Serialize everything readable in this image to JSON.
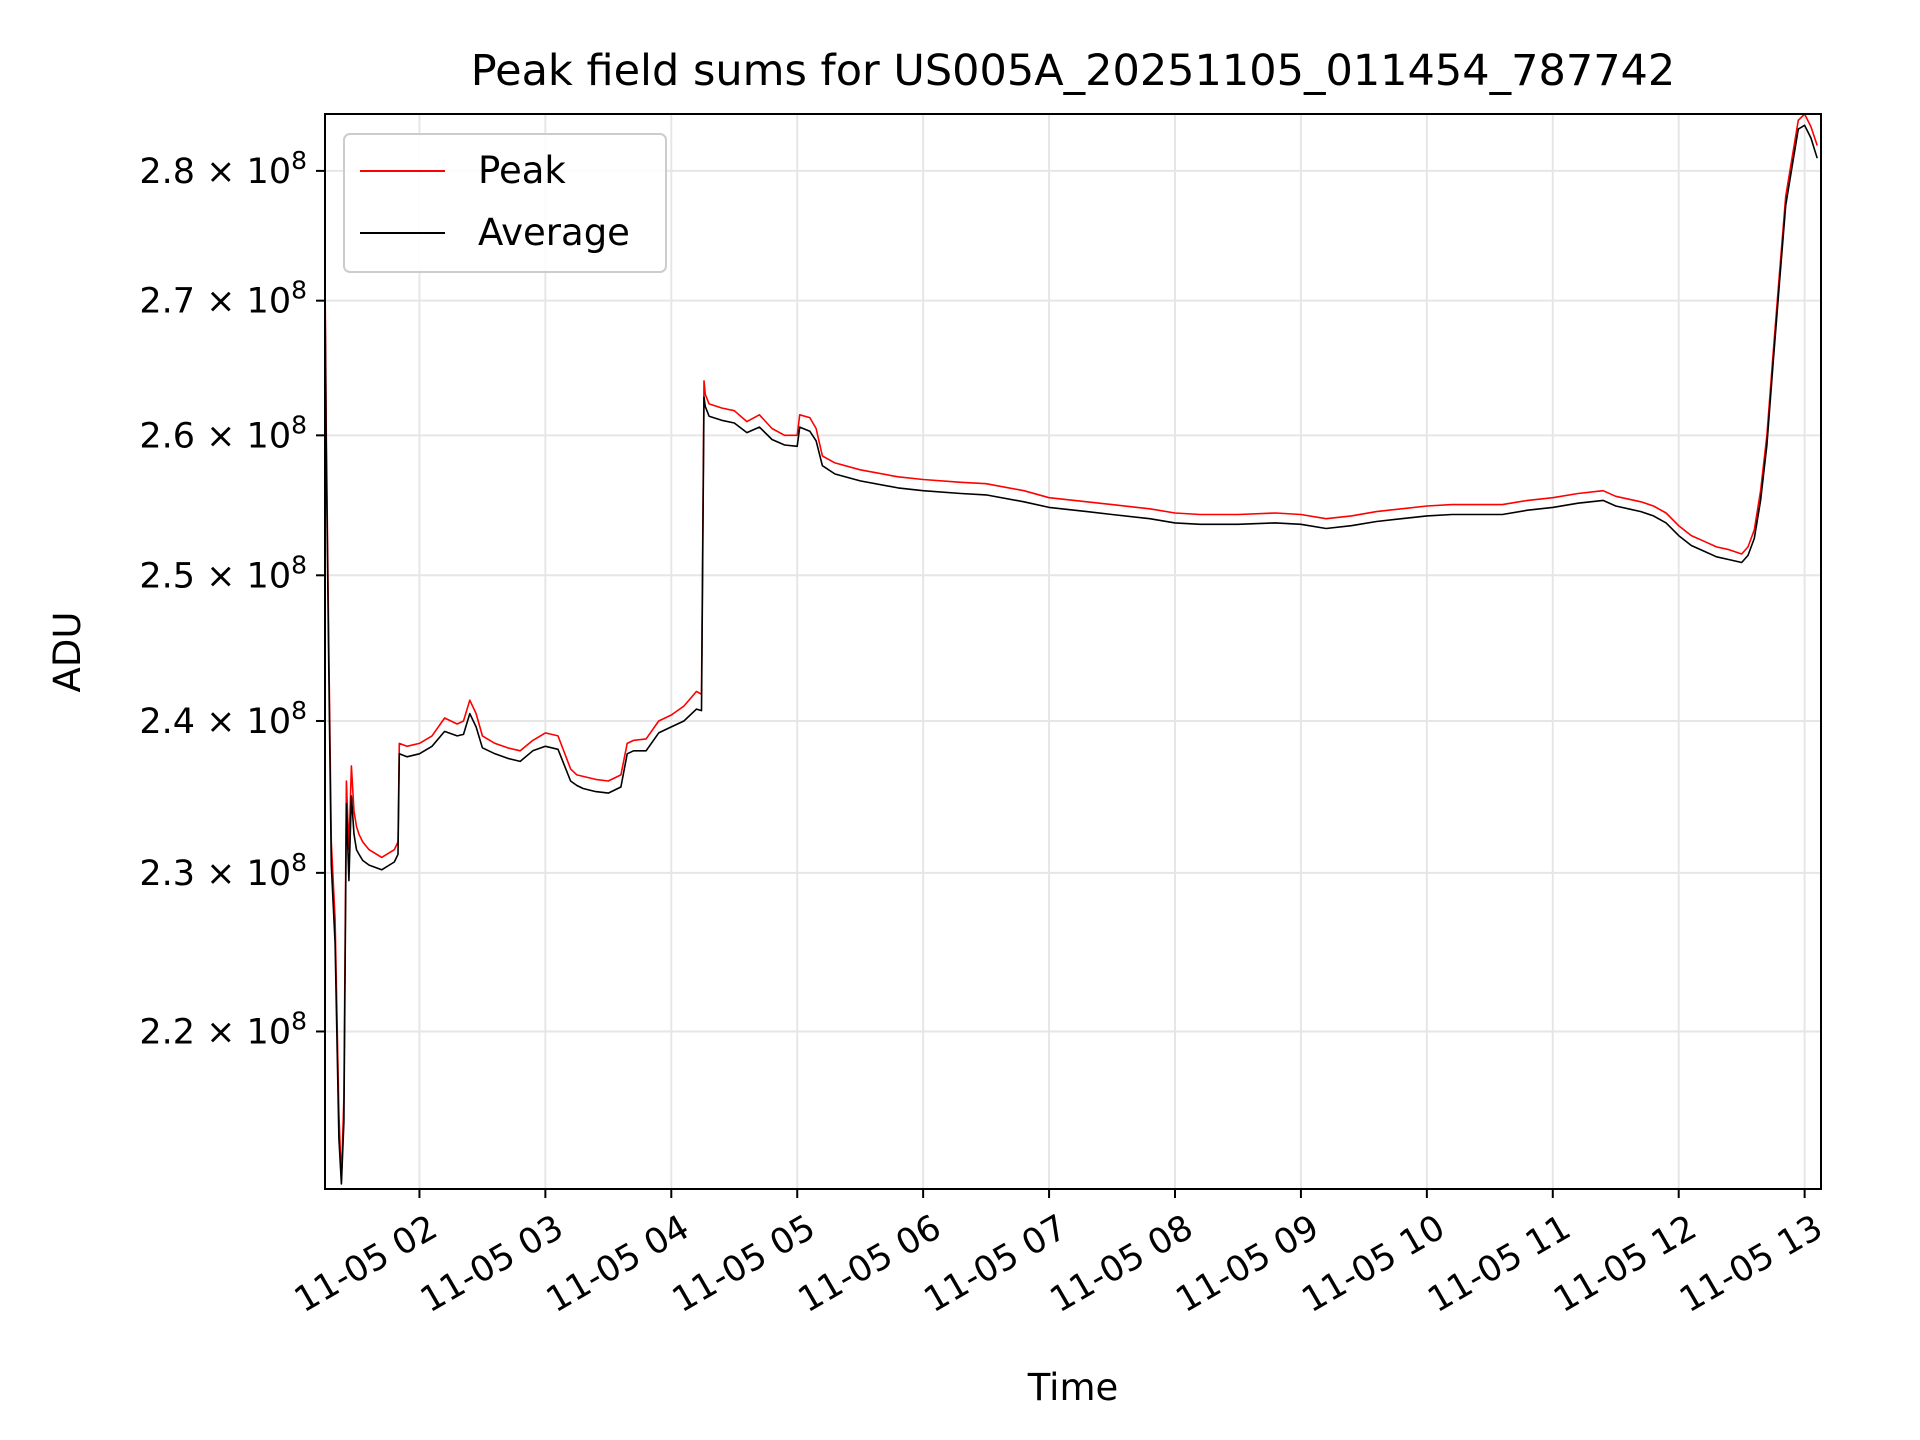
{
  "chart_data": {
    "type": "line",
    "title": "Peak field sums for US005A_20251105_011454_787742",
    "xlabel": "Time",
    "ylabel": "ADU",
    "yscale": "log",
    "grid": true,
    "legend_position": "top-left",
    "xlim": [
      1.25,
      13.13
    ],
    "ylim": [
      210500000,
      284500000
    ],
    "x_ticks": [
      {
        "value": 2,
        "label": "11-05 02"
      },
      {
        "value": 3,
        "label": "11-05 03"
      },
      {
        "value": 4,
        "label": "11-05 04"
      },
      {
        "value": 5,
        "label": "11-05 05"
      },
      {
        "value": 6,
        "label": "11-05 06"
      },
      {
        "value": 7,
        "label": "11-05 07"
      },
      {
        "value": 8,
        "label": "11-05 08"
      },
      {
        "value": 9,
        "label": "11-05 09"
      },
      {
        "value": 10,
        "label": "11-05 10"
      },
      {
        "value": 11,
        "label": "11-05 11"
      },
      {
        "value": 12,
        "label": "11-05 12"
      },
      {
        "value": 13,
        "label": "11-05 13"
      }
    ],
    "y_ticks": [
      {
        "value": 220000000,
        "mantissa": "2.2",
        "exp": "8"
      },
      {
        "value": 230000000,
        "mantissa": "2.3",
        "exp": "8"
      },
      {
        "value": 240000000,
        "mantissa": "2.4",
        "exp": "8"
      },
      {
        "value": 250000000,
        "mantissa": "2.5",
        "exp": "8"
      },
      {
        "value": 260000000,
        "mantissa": "2.6",
        "exp": "8"
      },
      {
        "value": 270000000,
        "mantissa": "2.7",
        "exp": "8"
      },
      {
        "value": 280000000,
        "mantissa": "2.8",
        "exp": "8"
      }
    ],
    "series": [
      {
        "name": "Peak",
        "color": "#ff0000",
        "x": [
          1.25,
          1.26,
          1.28,
          1.3,
          1.33,
          1.36,
          1.38,
          1.4,
          1.42,
          1.44,
          1.46,
          1.48,
          1.5,
          1.52,
          1.55,
          1.6,
          1.7,
          1.8,
          1.83,
          1.84,
          1.9,
          2.0,
          2.1,
          2.2,
          2.3,
          2.35,
          2.4,
          2.45,
          2.5,
          2.6,
          2.7,
          2.8,
          2.9,
          3.0,
          3.1,
          3.2,
          3.25,
          3.3,
          3.4,
          3.5,
          3.6,
          3.65,
          3.7,
          3.8,
          3.9,
          4.0,
          4.1,
          4.2,
          4.24,
          4.26,
          4.27,
          4.3,
          4.4,
          4.5,
          4.6,
          4.7,
          4.8,
          4.9,
          5.0,
          5.02,
          5.1,
          5.15,
          5.2,
          5.3,
          5.5,
          5.8,
          6.0,
          6.3,
          6.5,
          6.8,
          7.0,
          7.3,
          7.5,
          7.8,
          8.0,
          8.2,
          8.5,
          8.8,
          9.0,
          9.2,
          9.4,
          9.6,
          9.8,
          10.0,
          10.2,
          10.4,
          10.6,
          10.8,
          11.0,
          11.2,
          11.4,
          11.5,
          11.7,
          11.8,
          11.9,
          12.0,
          12.1,
          12.2,
          12.3,
          12.4,
          12.5,
          12.55,
          12.6,
          12.65,
          12.7,
          12.75,
          12.8,
          12.85,
          12.9,
          12.95,
          13.0,
          13.05,
          13.1
        ],
        "values": [
          272000000,
          260000000,
          245000000,
          232000000,
          227000000,
          215000000,
          211000000,
          216000000,
          236000000,
          231500000,
          237000000,
          234000000,
          233000000,
          232500000,
          232000000,
          231500000,
          231000000,
          231500000,
          232000000,
          238500000,
          238300000,
          238500000,
          239000000,
          240200000,
          239800000,
          240000000,
          241400000,
          240500000,
          239000000,
          238500000,
          238200000,
          238000000,
          238700000,
          239200000,
          239000000,
          236800000,
          236400000,
          236300000,
          236100000,
          236000000,
          236400000,
          238500000,
          238700000,
          238800000,
          240000000,
          240400000,
          241000000,
          242000000,
          241800000,
          264000000,
          263000000,
          262300000,
          262000000,
          261800000,
          261000000,
          261500000,
          260500000,
          260000000,
          260000000,
          261500000,
          261300000,
          260500000,
          258500000,
          258000000,
          257500000,
          257000000,
          256800000,
          256600000,
          256500000,
          256000000,
          255500000,
          255200000,
          255000000,
          254700000,
          254400000,
          254300000,
          254300000,
          254400000,
          254300000,
          254000000,
          254200000,
          254500000,
          254700000,
          254900000,
          255000000,
          255000000,
          255000000,
          255300000,
          255500000,
          255800000,
          256000000,
          255600000,
          255200000,
          254900000,
          254400000,
          253500000,
          252800000,
          252400000,
          252000000,
          251800000,
          251500000,
          252000000,
          253200000,
          256000000,
          260000000,
          266000000,
          272000000,
          278000000,
          281000000,
          284000000,
          284500000,
          283500000,
          282000000
        ]
      },
      {
        "name": "Average",
        "color": "#000000",
        "x": [
          1.25,
          1.26,
          1.28,
          1.3,
          1.33,
          1.36,
          1.38,
          1.4,
          1.42,
          1.44,
          1.46,
          1.48,
          1.5,
          1.52,
          1.55,
          1.6,
          1.7,
          1.8,
          1.83,
          1.84,
          1.9,
          2.0,
          2.1,
          2.2,
          2.3,
          2.35,
          2.4,
          2.45,
          2.5,
          2.6,
          2.7,
          2.8,
          2.9,
          3.0,
          3.1,
          3.2,
          3.25,
          3.3,
          3.4,
          3.5,
          3.6,
          3.65,
          3.7,
          3.8,
          3.9,
          4.0,
          4.1,
          4.2,
          4.24,
          4.26,
          4.27,
          4.3,
          4.4,
          4.5,
          4.6,
          4.7,
          4.8,
          4.9,
          5.0,
          5.02,
          5.1,
          5.15,
          5.2,
          5.3,
          5.5,
          5.8,
          6.0,
          6.3,
          6.5,
          6.8,
          7.0,
          7.3,
          7.5,
          7.8,
          8.0,
          8.2,
          8.5,
          8.8,
          9.0,
          9.2,
          9.4,
          9.6,
          9.8,
          10.0,
          10.2,
          10.4,
          10.6,
          10.8,
          11.0,
          11.2,
          11.4,
          11.5,
          11.7,
          11.8,
          11.9,
          12.0,
          12.1,
          12.2,
          12.3,
          12.4,
          12.5,
          12.55,
          12.6,
          12.65,
          12.7,
          12.75,
          12.8,
          12.85,
          12.9,
          12.95,
          13.0,
          13.05,
          13.1
        ],
        "values": [
          270500000,
          258500000,
          243500000,
          230500000,
          225500000,
          213500000,
          210800000,
          214500000,
          234500000,
          229500000,
          235000000,
          232500000,
          231500000,
          231200000,
          230800000,
          230500000,
          230200000,
          230700000,
          231200000,
          237800000,
          237600000,
          237800000,
          238300000,
          239300000,
          239000000,
          239100000,
          240500000,
          239600000,
          238200000,
          237800000,
          237500000,
          237300000,
          238000000,
          238300000,
          238100000,
          236000000,
          235700000,
          235500000,
          235300000,
          235200000,
          235600000,
          237800000,
          238000000,
          238000000,
          239200000,
          239600000,
          240000000,
          240800000,
          240700000,
          262800000,
          262100000,
          261400000,
          261100000,
          260900000,
          260200000,
          260600000,
          259700000,
          259300000,
          259200000,
          260600000,
          260300000,
          259600000,
          257800000,
          257200000,
          256700000,
          256200000,
          256000000,
          255800000,
          255700000,
          255200000,
          254800000,
          254500000,
          254300000,
          254000000,
          253700000,
          253600000,
          253600000,
          253700000,
          253600000,
          253300000,
          253500000,
          253800000,
          254000000,
          254200000,
          254300000,
          254300000,
          254300000,
          254600000,
          254800000,
          255100000,
          255300000,
          254900000,
          254500000,
          254200000,
          253700000,
          252800000,
          252100000,
          251700000,
          251300000,
          251100000,
          250900000,
          251400000,
          252600000,
          255300000,
          259300000,
          265300000,
          271300000,
          277300000,
          280300000,
          283300000,
          283600000,
          282600000,
          281000000
        ]
      }
    ]
  }
}
